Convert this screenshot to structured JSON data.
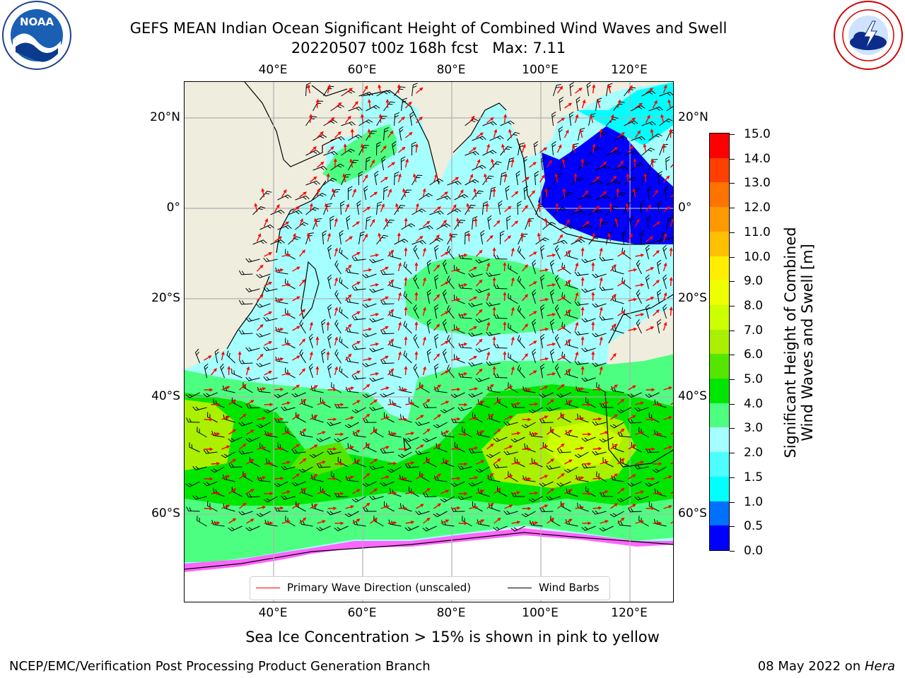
{
  "title": {
    "line1": "GEFS MEAN Indian Ocean Significant Height of Combined Wind Waves and Swell",
    "line2": "20220507 t00z 168h fcst   Max: 7.11"
  },
  "logos": {
    "left": "noaa-logo",
    "right": "national-weather-service-logo"
  },
  "map": {
    "lon_labels": [
      "40°E",
      "60°E",
      "80°E",
      "100°E",
      "120°E"
    ],
    "lat_labels": [
      "20°N",
      "0°",
      "20°S",
      "40°S",
      "60°S"
    ],
    "lon_range": [
      20,
      130
    ],
    "lat_range": [
      -73,
      27
    ],
    "grid": true,
    "colors": {
      "land": "#efedde",
      "ice_free_polar": "#ffffff",
      "grid": "#b0b0b0",
      "arrow": "#ff0000",
      "barb": "#000000"
    },
    "legend": {
      "wave_direction": "Primary Wave Direction (unscaled)",
      "wind_barbs": "Wind Barbs"
    }
  },
  "colorbar": {
    "label_line1": "Significant Height of Combined",
    "label_line2": "Wind Waves and Swell [m]",
    "ticks": [
      "0.0",
      "0.5",
      "1.0",
      "1.5",
      "2.0",
      "3.0",
      "4.0",
      "5.0",
      "6.0",
      "7.0",
      "8.0",
      "9.0",
      "10.0",
      "11.0",
      "12.0",
      "13.0",
      "14.0",
      "15.0"
    ],
    "colors": [
      "#0000ff",
      "#0070ff",
      "#00ffff",
      "#4dffff",
      "#a6ffff",
      "#4dff80",
      "#00e600",
      "#55e600",
      "#aaf000",
      "#ccff00",
      "#f0ff00",
      "#ffee00",
      "#ffc000",
      "#ff9900",
      "#ff7300",
      "#ff4000",
      "#ff0000"
    ]
  },
  "note": "Sea Ice Concentration > 15% is shown in pink to yellow",
  "footer": {
    "left": "NCEP/EMC/Verification Post Processing Product Generation Branch",
    "right_prefix": "08 May 2022 on ",
    "right_host": "Hera"
  }
}
